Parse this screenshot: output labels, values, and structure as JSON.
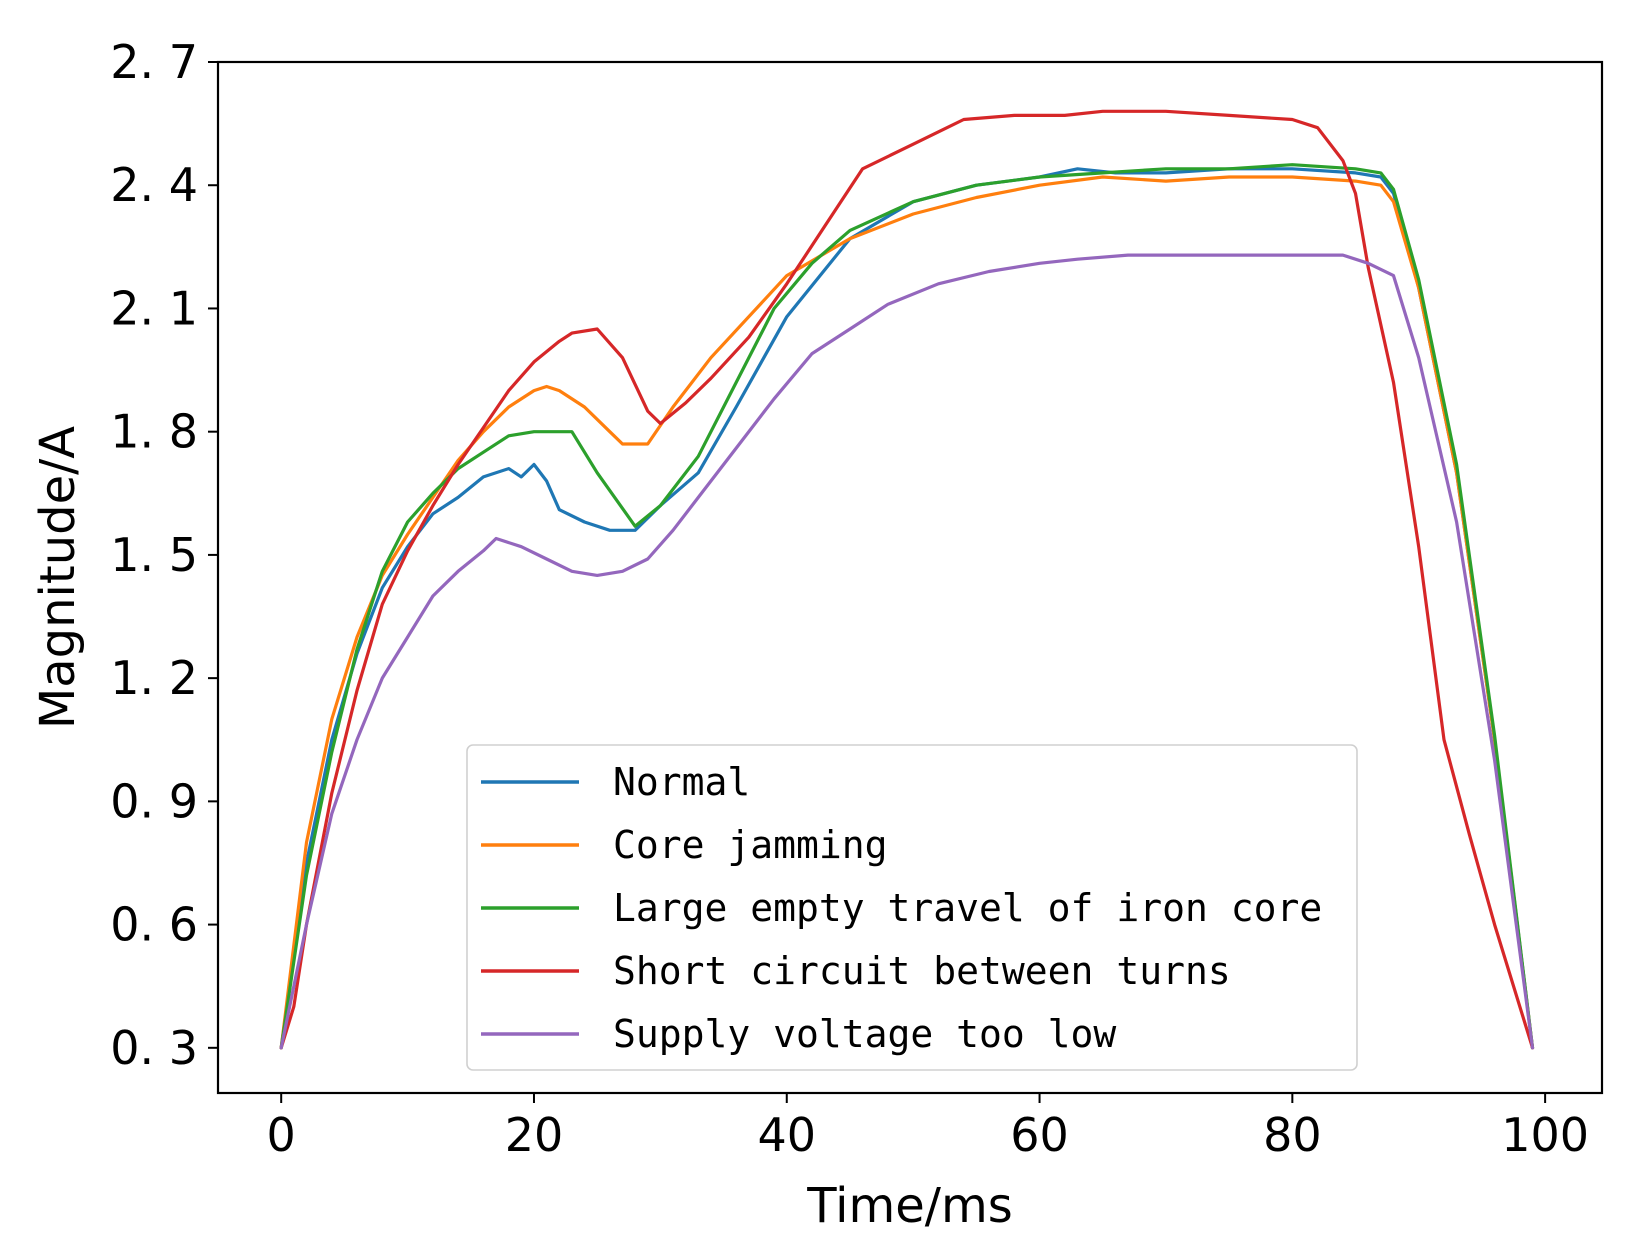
{
  "chart_data": {
    "type": "line",
    "title": "",
    "xlabel": "Time/ms",
    "ylabel": "Magnitude/A",
    "xlim": [
      -5,
      104.5
    ],
    "ylim": [
      0.19,
      2.7
    ],
    "xticks": [
      0,
      20,
      40,
      60,
      80,
      100
    ],
    "xtick_labels": [
      "0",
      "20",
      "40",
      "60",
      "80",
      "100"
    ],
    "yticks": [
      0.3,
      0.6,
      0.9,
      1.2,
      1.5,
      1.8,
      2.1,
      2.4,
      2.7
    ],
    "ytick_labels": [
      "0. 3",
      "0. 6",
      "0. 9",
      "1. 2",
      "1. 5",
      "1. 8",
      "2. 1",
      "2. 4",
      "2. 7"
    ],
    "grid": false,
    "legend_position": "lower-center",
    "series": [
      {
        "name": "Normal",
        "color": "#1f77b4",
        "x": [
          0,
          2,
          4,
          6,
          8,
          10,
          12,
          14,
          16,
          18,
          19,
          20,
          21,
          22,
          24,
          26,
          28,
          30,
          33,
          36,
          40,
          45,
          50,
          55,
          60,
          63,
          66,
          70,
          75,
          80,
          85,
          87,
          88,
          90,
          93,
          96,
          99
        ],
        "y": [
          0.3,
          0.75,
          1.05,
          1.26,
          1.42,
          1.52,
          1.6,
          1.64,
          1.69,
          1.71,
          1.69,
          1.72,
          1.68,
          1.61,
          1.58,
          1.56,
          1.56,
          1.62,
          1.7,
          1.86,
          2.08,
          2.27,
          2.36,
          2.4,
          2.42,
          2.44,
          2.43,
          2.43,
          2.44,
          2.44,
          2.43,
          2.42,
          2.38,
          2.15,
          1.7,
          1.05,
          0.3
        ]
      },
      {
        "name": "Core jamming",
        "color": "#ff7f0e",
        "x": [
          0,
          2,
          4,
          6,
          8,
          10,
          12,
          14,
          16,
          18,
          20,
          21,
          22,
          24,
          26,
          27,
          29,
          31,
          34,
          37,
          40,
          45,
          50,
          55,
          60,
          65,
          70,
          75,
          80,
          85,
          87,
          88,
          90,
          93,
          96,
          99
        ],
        "y": [
          0.3,
          0.8,
          1.1,
          1.3,
          1.45,
          1.55,
          1.64,
          1.73,
          1.8,
          1.86,
          1.9,
          1.91,
          1.9,
          1.86,
          1.8,
          1.77,
          1.77,
          1.86,
          1.98,
          2.08,
          2.18,
          2.27,
          2.33,
          2.37,
          2.4,
          2.42,
          2.41,
          2.42,
          2.42,
          2.41,
          2.4,
          2.36,
          2.15,
          1.7,
          1.05,
          0.3
        ]
      },
      {
        "name": "Large empty travel of iron core",
        "color": "#2ca02c",
        "x": [
          0,
          2,
          4,
          6,
          8,
          10,
          12,
          14,
          16,
          18,
          20,
          23,
          25,
          28,
          30,
          33,
          36,
          39,
          42,
          45,
          50,
          55,
          60,
          65,
          70,
          75,
          80,
          85,
          87,
          88,
          90,
          93,
          96,
          99
        ],
        "y": [
          0.3,
          0.72,
          1.02,
          1.27,
          1.46,
          1.58,
          1.65,
          1.71,
          1.75,
          1.79,
          1.8,
          1.8,
          1.7,
          1.57,
          1.62,
          1.74,
          1.92,
          2.1,
          2.21,
          2.29,
          2.36,
          2.4,
          2.42,
          2.43,
          2.44,
          2.44,
          2.45,
          2.44,
          2.43,
          2.39,
          2.17,
          1.72,
          1.06,
          0.3
        ]
      },
      {
        "name": "Short circuit between turns",
        "color": "#d62728",
        "x": [
          0,
          1,
          2,
          4,
          6,
          8,
          10,
          12,
          14,
          16,
          18,
          20,
          22,
          23,
          25,
          27,
          29,
          30,
          32,
          34,
          37,
          40,
          43,
          46,
          50,
          54,
          58,
          62,
          65,
          70,
          75,
          80,
          82,
          84,
          85,
          86,
          88,
          90,
          92,
          94,
          96,
          99
        ],
        "y": [
          0.3,
          0.4,
          0.6,
          0.92,
          1.17,
          1.38,
          1.51,
          1.62,
          1.72,
          1.81,
          1.9,
          1.97,
          2.02,
          2.04,
          2.05,
          1.98,
          1.85,
          1.82,
          1.87,
          1.93,
          2.03,
          2.16,
          2.3,
          2.44,
          2.5,
          2.56,
          2.57,
          2.57,
          2.58,
          2.58,
          2.57,
          2.56,
          2.54,
          2.46,
          2.38,
          2.2,
          1.92,
          1.52,
          1.05,
          0.82,
          0.6,
          0.3
        ]
      },
      {
        "name": "Supply voltage too low",
        "color": "#9467bd",
        "x": [
          0,
          2,
          4,
          6,
          8,
          10,
          12,
          14,
          16,
          17,
          19,
          21,
          23,
          25,
          27,
          29,
          31,
          33,
          36,
          39,
          42,
          45,
          48,
          52,
          56,
          60,
          63,
          67,
          70,
          75,
          80,
          84,
          86,
          88,
          90,
          93,
          96,
          99
        ],
        "y": [
          0.3,
          0.6,
          0.87,
          1.05,
          1.2,
          1.3,
          1.4,
          1.46,
          1.51,
          1.54,
          1.52,
          1.49,
          1.46,
          1.45,
          1.46,
          1.49,
          1.56,
          1.64,
          1.76,
          1.88,
          1.99,
          2.05,
          2.11,
          2.16,
          2.19,
          2.21,
          2.22,
          2.23,
          2.23,
          2.23,
          2.23,
          2.23,
          2.21,
          2.18,
          1.98,
          1.58,
          1.0,
          0.3
        ]
      }
    ]
  }
}
